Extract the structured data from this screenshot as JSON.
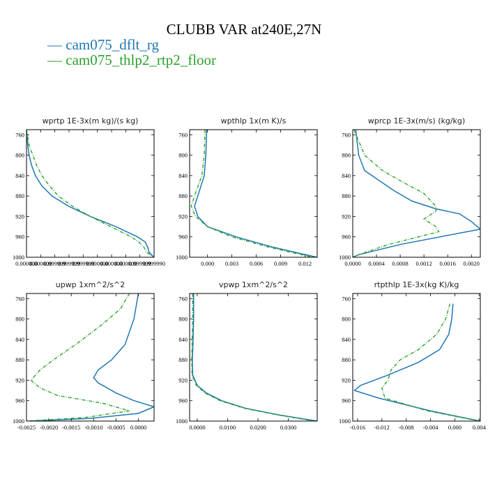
{
  "title": "CLUBB VAR at240E,27N",
  "legend": [
    {
      "name": "— cam075_dflt_rg",
      "color": "#1f77b4"
    },
    {
      "name": "— cam075_thlp2_rtp2_floor",
      "color": "#2ca02c"
    }
  ],
  "chart_data": [
    {
      "type": "line",
      "title": "wprtp  1E-3x(m kg)/(s kg)",
      "xlim": [
        0,
        1
      ],
      "ylim": [
        1000,
        750
      ],
      "yticks": [
        760,
        800,
        840,
        880,
        920,
        960,
        1000
      ],
      "xticks": [
        0,
        0.111,
        0.222,
        0.333,
        0.444,
        0.556,
        0.667,
        0.778,
        0.889,
        1
      ],
      "xticklabels": [
        "0.000000",
        "0.000000",
        "0.999999",
        "0.999999",
        "0.999999",
        "0.000000",
        "0.000000",
        "0.000000",
        "0.999999",
        "0.999990"
      ],
      "series": [
        {
          "name": "cam075_dflt_rg",
          "points": [
            [
              0.0,
              750
            ],
            [
              0.01,
              780
            ],
            [
              0.02,
              800
            ],
            [
              0.04,
              820
            ],
            [
              0.07,
              840
            ],
            [
              0.12,
              860
            ],
            [
              0.2,
              880
            ],
            [
              0.33,
              900
            ],
            [
              0.5,
              920
            ],
            [
              0.7,
              940
            ],
            [
              0.87,
              960
            ],
            [
              0.93,
              970
            ],
            [
              0.95,
              980
            ],
            [
              0.96,
              990
            ],
            [
              1.0,
              1000
            ]
          ]
        },
        {
          "name": "cam075_thlp2_rtp2_floor",
          "points": [
            [
              0.0,
              750
            ],
            [
              0.02,
              780
            ],
            [
              0.05,
              800
            ],
            [
              0.08,
              820
            ],
            [
              0.12,
              840
            ],
            [
              0.18,
              860
            ],
            [
              0.25,
              880
            ],
            [
              0.36,
              900
            ],
            [
              0.5,
              920
            ],
            [
              0.66,
              940
            ],
            [
              0.82,
              960
            ],
            [
              0.88,
              970
            ],
            [
              0.92,
              980
            ],
            [
              0.94,
              990
            ],
            [
              1.0,
              1000
            ]
          ]
        }
      ]
    },
    {
      "type": "line",
      "title": "wpthlp  1x(m K)/s",
      "xlim": [
        -0.0022,
        0.0135
      ],
      "ylim": [
        1000,
        750
      ],
      "yticks": [
        760,
        800,
        840,
        880,
        920,
        960,
        1000
      ],
      "xticks": [
        0,
        0.003,
        0.006,
        0.009,
        0.012
      ],
      "xticklabels": [
        "0.000",
        "0.003",
        "0.006",
        "0.009",
        "0.012"
      ],
      "series": [
        {
          "name": "cam075_dflt_rg",
          "points": [
            [
              -0.0001,
              750
            ],
            [
              -0.0002,
              800
            ],
            [
              -0.0004,
              840
            ],
            [
              -0.0012,
              880
            ],
            [
              -0.0016,
              900
            ],
            [
              -0.0012,
              920
            ],
            [
              0.0,
              940
            ],
            [
              0.0035,
              960
            ],
            [
              0.008,
              980
            ],
            [
              0.0115,
              993
            ],
            [
              0.0135,
              1000
            ]
          ]
        },
        {
          "name": "cam075_thlp2_rtp2_floor",
          "points": [
            [
              -0.0003,
              750
            ],
            [
              -0.0004,
              800
            ],
            [
              -0.0007,
              840
            ],
            [
              -0.0016,
              880
            ],
            [
              -0.002,
              900
            ],
            [
              -0.0015,
              920
            ],
            [
              0.0,
              940
            ],
            [
              0.003,
              960
            ],
            [
              0.0075,
              980
            ],
            [
              0.011,
              993
            ],
            [
              0.013,
              1000
            ]
          ]
        }
      ]
    },
    {
      "type": "line",
      "title": "wprcp  1E-3x(m/s) (kg/kg)",
      "xlim": [
        0,
        0.00215
      ],
      "ylim": [
        1000,
        750
      ],
      "yticks": [
        760,
        800,
        840,
        880,
        920,
        960,
        1000
      ],
      "xticks": [
        0,
        0.0004,
        0.0008,
        0.0012,
        0.0016,
        0.002
      ],
      "xticklabels": [
        "0.0000",
        "0.0004",
        "0.0008",
        "0.0012",
        "0.0016",
        "0.0020"
      ],
      "series": [
        {
          "name": "cam075_dflt_rg",
          "points": [
            [
              5e-05,
              750
            ],
            [
              0.0001,
              800
            ],
            [
              0.0002,
              830
            ],
            [
              0.00045,
              850
            ],
            [
              0.0007,
              870
            ],
            [
              0.001,
              890
            ],
            [
              0.0014,
              905
            ],
            [
              0.0018,
              915
            ],
            [
              0.002,
              930
            ],
            [
              0.00215,
              945
            ],
            [
              0.0008,
              975
            ],
            [
              0.0001,
              995
            ],
            [
              0.0,
              1000
            ]
          ]
        },
        {
          "name": "cam075_thlp2_rtp2_floor",
          "points": [
            [
              2e-05,
              750
            ],
            [
              0.0002,
              800
            ],
            [
              0.0005,
              830
            ],
            [
              0.0008,
              850
            ],
            [
              0.0012,
              875
            ],
            [
              0.0014,
              900
            ],
            [
              0.0014,
              910
            ],
            [
              0.0012,
              925
            ],
            [
              0.0014,
              940
            ],
            [
              0.00145,
              950
            ],
            [
              0.0006,
              975
            ],
            [
              0.0001,
              995
            ],
            [
              0.0,
              1000
            ]
          ]
        }
      ]
    },
    {
      "type": "line",
      "title": "upwp  1xm^2/s^2",
      "xlim": [
        -0.0025,
        0.00035
      ],
      "ylim": [
        1000,
        750
      ],
      "yticks": [
        760,
        800,
        840,
        880,
        920,
        960,
        1000
      ],
      "xticks": [
        -0.0025,
        -0.002,
        -0.0015,
        -0.001,
        -0.0005,
        0
      ],
      "xticklabels": [
        "-0.0025",
        "-0.0020",
        "-0.0015",
        "-0.0010",
        "-0.0005",
        "0.0000"
      ],
      "series": [
        {
          "name": "cam075_dflt_rg",
          "points": [
            [
              0.0,
              750
            ],
            [
              -0.0001,
              800
            ],
            [
              -0.0003,
              850
            ],
            [
              -0.0006,
              880
            ],
            [
              -0.0009,
              900
            ],
            [
              -0.001,
              915
            ],
            [
              -0.0009,
              925
            ],
            [
              -0.0005,
              945
            ],
            [
              -0.0001,
              960
            ],
            [
              0.00035,
              972
            ],
            [
              0.0,
              985
            ],
            [
              -0.0011,
              995
            ],
            [
              -0.0024,
              1000
            ]
          ]
        },
        {
          "name": "cam075_thlp2_rtp2_floor",
          "points": [
            [
              -0.0002,
              750
            ],
            [
              -0.0004,
              780
            ],
            [
              -0.0008,
              810
            ],
            [
              -0.0014,
              850
            ],
            [
              -0.0019,
              880
            ],
            [
              -0.0022,
              900
            ],
            [
              -0.0024,
              920
            ],
            [
              -0.0022,
              935
            ],
            [
              -0.0018,
              950
            ],
            [
              -0.0008,
              965
            ],
            [
              -0.0002,
              980
            ],
            [
              -0.0012,
              993
            ],
            [
              -0.0025,
              1000
            ]
          ]
        }
      ]
    },
    {
      "type": "line",
      "title": "vpwp  1xm^2/s^2",
      "xlim": [
        -0.0025,
        0.0395
      ],
      "ylim": [
        1000,
        750
      ],
      "yticks": [
        760,
        800,
        840,
        880,
        920,
        960,
        1000
      ],
      "xticks": [
        0,
        0.01,
        0.02,
        0.03
      ],
      "xticklabels": [
        "0.0000",
        "0.0100",
        "0.0200",
        "0.0300"
      ],
      "series": [
        {
          "name": "cam075_dflt_rg",
          "points": [
            [
              -0.0012,
              750
            ],
            [
              -0.0012,
              800
            ],
            [
              -0.0014,
              850
            ],
            [
              -0.0016,
              880
            ],
            [
              -0.0015,
              910
            ],
            [
              0.0,
              930
            ],
            [
              0.003,
              945
            ],
            [
              0.008,
              960
            ],
            [
              0.016,
              975
            ],
            [
              0.027,
              988
            ],
            [
              0.0395,
              1000
            ]
          ]
        },
        {
          "name": "cam075_thlp2_rtp2_floor",
          "points": [
            [
              -0.0015,
              750
            ],
            [
              -0.0015,
              800
            ],
            [
              -0.0017,
              850
            ],
            [
              -0.0018,
              880
            ],
            [
              -0.0017,
              910
            ],
            [
              -0.0003,
              930
            ],
            [
              0.0025,
              945
            ],
            [
              0.0075,
              960
            ],
            [
              0.0155,
              975
            ],
            [
              0.0265,
              988
            ],
            [
              0.0385,
              1000
            ]
          ]
        }
      ]
    },
    {
      "type": "line",
      "title": "rtpthlp  1E-3x(kg K)/kg",
      "xlim": [
        -0.0168,
        0.0042
      ],
      "ylim": [
        1000,
        750
      ],
      "yticks": [
        760,
        800,
        840,
        880,
        920,
        960,
        1000
      ],
      "xticks": [
        -0.016,
        -0.012,
        -0.008,
        -0.004,
        0,
        0.004
      ],
      "xticklabels": [
        "-0.016",
        "-0.012",
        "-0.008",
        "-0.004",
        "0.000",
        "0.004"
      ],
      "series": [
        {
          "name": "cam075_dflt_rg",
          "points": [
            [
              -0.0003,
              770
            ],
            [
              -0.0005,
              800
            ],
            [
              -0.001,
              830
            ],
            [
              -0.0025,
              860
            ],
            [
              -0.006,
              885
            ],
            [
              -0.011,
              910
            ],
            [
              -0.0155,
              930
            ],
            [
              -0.0165,
              940
            ],
            [
              -0.0125,
              955
            ],
            [
              -0.004,
              980
            ],
            [
              0.0042,
              1000
            ]
          ]
        },
        {
          "name": "cam075_thlp2_rtp2_floor",
          "points": [
            [
              -0.0008,
              770
            ],
            [
              -0.0015,
              800
            ],
            [
              -0.003,
              830
            ],
            [
              -0.006,
              860
            ],
            [
              -0.009,
              880
            ],
            [
              -0.0105,
              900
            ],
            [
              -0.011,
              920
            ],
            [
              -0.012,
              935
            ],
            [
              -0.0115,
              955
            ],
            [
              -0.0045,
              980
            ],
            [
              0.004,
              1000
            ]
          ]
        }
      ]
    }
  ]
}
